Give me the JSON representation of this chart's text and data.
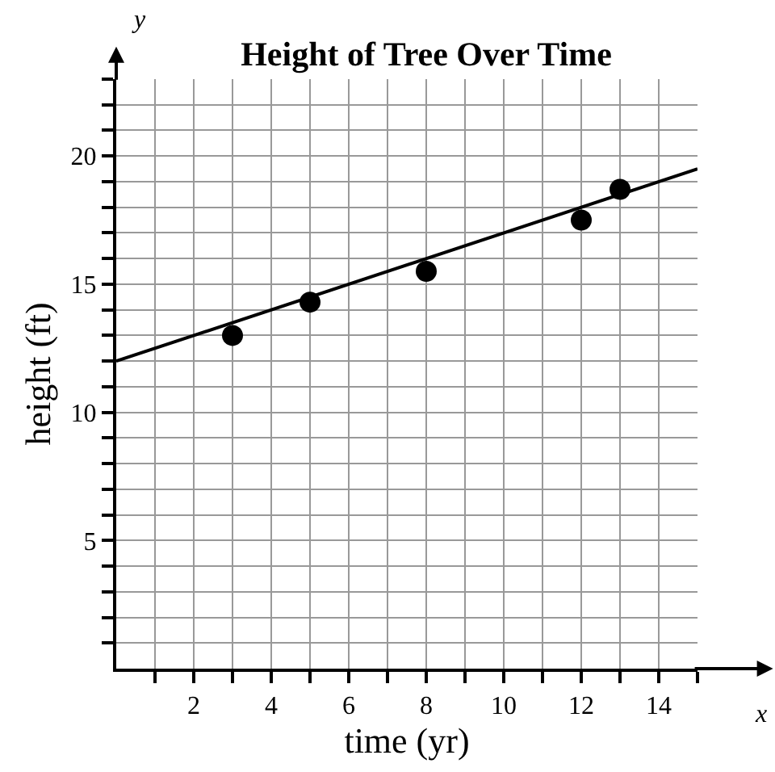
{
  "chart_data": {
    "type": "scatter",
    "title": "Height of Tree Over Time",
    "xlabel": "time (yr)",
    "ylabel": "height (ft)",
    "annotations": [
      "y",
      "x"
    ],
    "series": [
      {
        "color": "#000000",
        "marker": "circle",
        "x": [
          3,
          5,
          8,
          12,
          13
        ],
        "values": [
          13,
          14.3,
          15.5,
          17.5,
          18.7
        ]
      },
      {
        "type": "line",
        "color": "#000000",
        "marker": "none",
        "line_style": "solid",
        "x": [
          0,
          15
        ],
        "values": [
          12,
          19.5
        ]
      }
    ],
    "xlim": [
      0,
      15
    ],
    "ylim": [
      0,
      23
    ],
    "xticks": [
      {
        "value": 1,
        "label": null
      },
      2,
      {
        "value": 3,
        "label": null
      },
      4,
      {
        "value": 5,
        "label": null
      },
      6,
      {
        "value": 7,
        "label": null
      },
      8,
      {
        "value": 9,
        "label": null
      },
      10,
      {
        "value": 11,
        "label": null
      },
      12,
      {
        "value": 13,
        "label": null
      },
      14,
      {
        "value": 15,
        "label": null
      }
    ],
    "yticks": [
      {
        "value": 1,
        "label": null
      },
      {
        "value": 2,
        "label": null
      },
      {
        "value": 3,
        "label": null
      },
      {
        "value": 4,
        "label": null
      },
      5,
      {
        "value": 6,
        "label": null
      },
      {
        "value": 7,
        "label": null
      },
      {
        "value": 8,
        "label": null
      },
      {
        "value": 9,
        "label": null
      },
      10,
      {
        "value": 11,
        "label": null
      },
      {
        "value": 12,
        "label": null
      },
      {
        "value": 13,
        "label": null
      },
      {
        "value": 14,
        "label": null
      },
      15,
      {
        "value": 16,
        "label": null
      },
      {
        "value": 17,
        "label": null
      },
      {
        "value": 18,
        "label": null
      },
      {
        "value": 19,
        "label": null
      },
      20,
      {
        "value": 21,
        "label": null
      },
      {
        "value": 22,
        "label": null
      },
      {
        "value": 23,
        "label": null
      }
    ],
    "grid": true
  }
}
